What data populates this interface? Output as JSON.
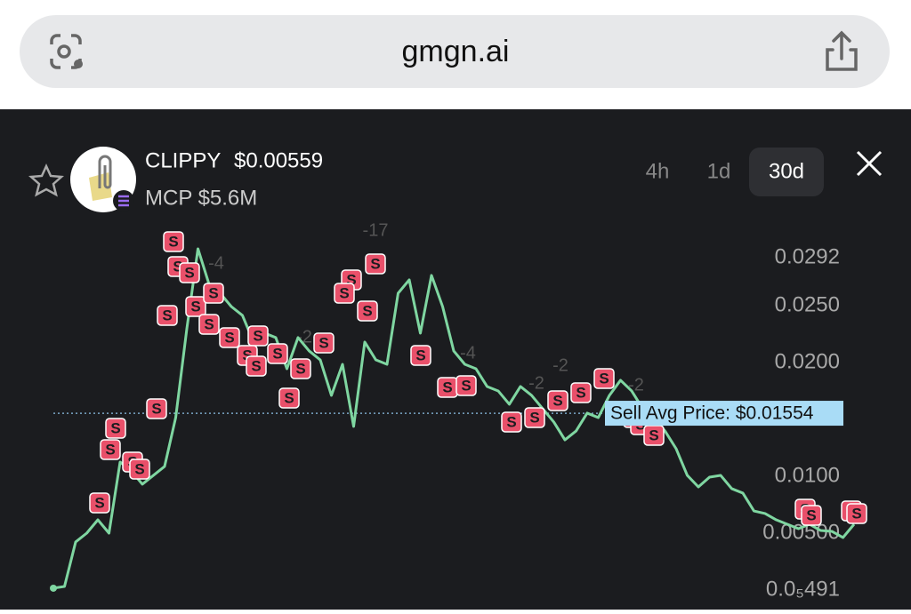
{
  "browser": {
    "url": "gmgn.ai"
  },
  "token": {
    "name": "CLIPPY",
    "price": "$0.00559",
    "market_cap": "MCP $5.6M"
  },
  "timeframes": [
    "4h",
    "1d",
    "30d"
  ],
  "chart_data": {
    "type": "line",
    "color": "#7fd6a1",
    "values": [
      0.00016,
      0.00031,
      0.00422,
      0.005,
      0.00617,
      0.005,
      0.01125,
      0.01047,
      0.0093,
      0.01008,
      0.01086,
      0.01516,
      0.02297,
      0.03,
      0.02688,
      0.02609,
      0.02492,
      0.02414,
      0.0218,
      0.02258,
      0.02219,
      0.01945,
      0.02219,
      0.02102,
      0.02023,
      0.01711,
      0.01984,
      0.01438,
      0.0218,
      0.02023,
      0.01984,
      0.02609,
      0.02727,
      0.02258,
      0.02766,
      0.02492,
      0.02102,
      0.01984,
      0.01945,
      0.01789,
      0.0175,
      0.01633,
      0.01789,
      0.01711,
      0.01594,
      0.01477,
      0.0132,
      0.01398,
      0.01555,
      0.01516,
      0.01711,
      0.01844,
      0.0175,
      0.01594,
      0.01516,
      0.01398,
      0.01242,
      0.01008,
      0.00906,
      0.00992,
      0.01008,
      0.00891,
      0.00852,
      0.00695,
      0.00672,
      0.00617,
      0.00578,
      0.00539,
      0.00578,
      0.00523,
      0.00516,
      0.00461,
      0.00578
    ],
    "ylim": [
      0,
      0.03234
    ],
    "yticks": [
      0.0292,
      {
        "value": 0.025,
        "label": "0.0250"
      },
      {
        "value": 0.02,
        "label": "0.0200"
      },
      {
        "value": 0.01,
        "label": "0.0100"
      },
      {
        "value": 0.005,
        "label": "0.00500"
      },
      {
        "value": 4.91e-06,
        "label": "0.0₅491"
      }
    ],
    "avg_price": {
      "value": 0.01554,
      "label": "Sell Avg Price: $0.01554"
    },
    "sell_label": "S",
    "annotations": [
      "-17",
      "-4",
      "-2",
      "-4",
      "-2",
      "-2",
      "-2"
    ]
  }
}
